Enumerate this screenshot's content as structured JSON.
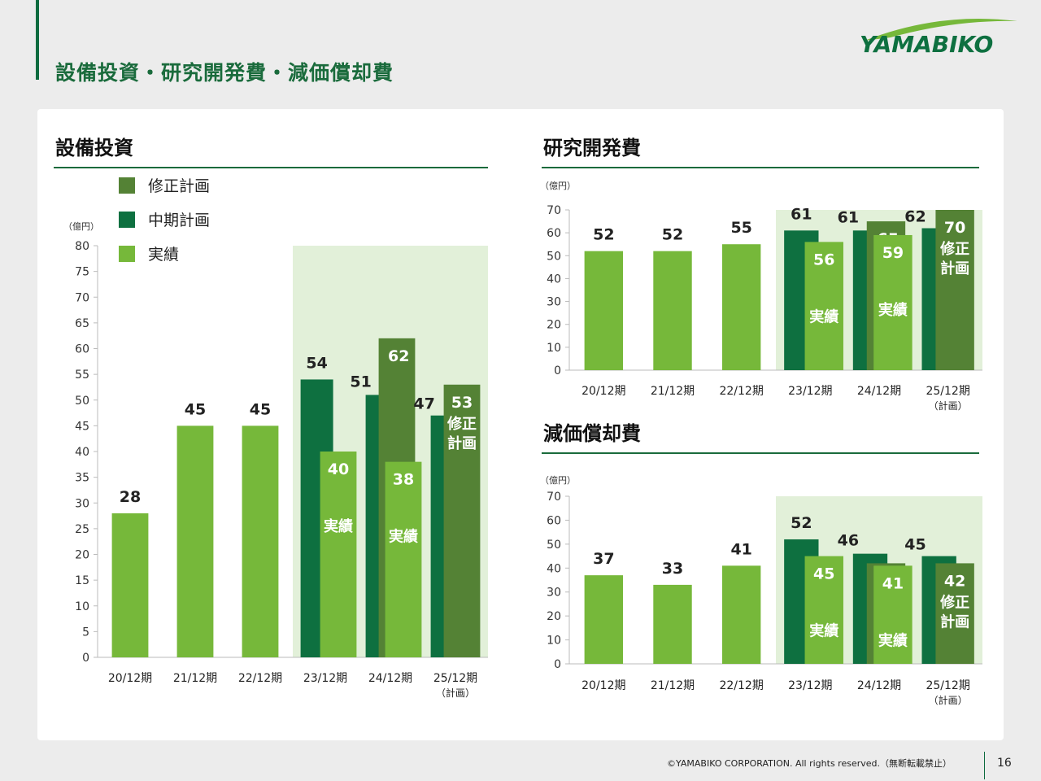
{
  "header": {
    "title": "設備投資・研究開発費・減価償却費",
    "logo_text": "YAMABIKO"
  },
  "footer": {
    "copyright": "©YAMABIKO CORPORATION. All rights reserved.（無断転載禁止）",
    "page_number": "16"
  },
  "colors": {
    "actual": "#76b83a",
    "midterm": "#0e7040",
    "revised": "#548235",
    "shade": "#e2f0d9",
    "title_green": "#1a6b3c"
  },
  "chart_data": [
    {
      "type": "bar",
      "title": "設備投資",
      "unit_label": "（億円）",
      "categories": [
        "20/12期",
        "21/12期",
        "22/12期",
        "23/12期",
        "24/12期",
        "25/12期"
      ],
      "category_sublabels": [
        "",
        "",
        "",
        "",
        "",
        "（計画）"
      ],
      "ylim": [
        0,
        80
      ],
      "yticks": [
        0,
        5,
        10,
        15,
        20,
        25,
        30,
        35,
        40,
        45,
        50,
        55,
        60,
        65,
        70,
        75,
        80
      ],
      "legend": [
        "修正計画",
        "中期計画",
        "実績"
      ],
      "series": [
        {
          "name": "中期計画",
          "values": [
            null,
            null,
            null,
            54,
            51,
            47
          ]
        },
        {
          "name": "修正計画",
          "values": [
            null,
            null,
            null,
            null,
            62,
            53
          ]
        },
        {
          "name": "実績",
          "values": [
            28,
            45,
            45,
            40,
            38,
            null
          ]
        }
      ],
      "bar_inner_labels": [
        {
          "category": "23/12期",
          "text": "実績"
        },
        {
          "category": "24/12期",
          "text": "実績"
        },
        {
          "category": "25/12期",
          "text": "修正計画"
        }
      ],
      "shaded_from": "23/12期"
    },
    {
      "type": "bar",
      "title": "研究開発費",
      "unit_label": "（億円）",
      "categories": [
        "20/12期",
        "21/12期",
        "22/12期",
        "23/12期",
        "24/12期",
        "25/12期"
      ],
      "category_sublabels": [
        "",
        "",
        "",
        "",
        "",
        "（計画）"
      ],
      "ylim": [
        0,
        70
      ],
      "yticks": [
        0,
        10,
        20,
        30,
        40,
        50,
        60,
        70
      ],
      "series": [
        {
          "name": "中期計画",
          "values": [
            null,
            null,
            null,
            61,
            61,
            62
          ]
        },
        {
          "name": "修正計画",
          "values": [
            null,
            null,
            null,
            null,
            65,
            70
          ]
        },
        {
          "name": "実績",
          "values": [
            52,
            52,
            55,
            56,
            59,
            null
          ]
        }
      ],
      "bar_inner_labels": [
        {
          "category": "23/12期",
          "text": "実績"
        },
        {
          "category": "24/12期",
          "text": "実績"
        },
        {
          "category": "25/12期",
          "text": "修正計画"
        }
      ],
      "shaded_from": "23/12期"
    },
    {
      "type": "bar",
      "title": "減価償却費",
      "unit_label": "（億円）",
      "categories": [
        "20/12期",
        "21/12期",
        "22/12期",
        "23/12期",
        "24/12期",
        "25/12期"
      ],
      "category_sublabels": [
        "",
        "",
        "",
        "",
        "",
        "（計画）"
      ],
      "ylim": [
        0,
        70
      ],
      "yticks": [
        0,
        10,
        20,
        30,
        40,
        50,
        60,
        70
      ],
      "series": [
        {
          "name": "中期計画",
          "values": [
            null,
            null,
            null,
            52,
            46,
            45
          ]
        },
        {
          "name": "修正計画",
          "values": [
            null,
            null,
            null,
            null,
            42,
            42
          ]
        },
        {
          "name": "実績",
          "values": [
            37,
            33,
            41,
            45,
            41,
            null
          ]
        }
      ],
      "bar_inner_labels": [
        {
          "category": "23/12期",
          "text": "実績"
        },
        {
          "category": "24/12期",
          "text": "実績"
        },
        {
          "category": "25/12期",
          "text": "修正計画"
        }
      ],
      "shaded_from": "23/12期"
    }
  ]
}
